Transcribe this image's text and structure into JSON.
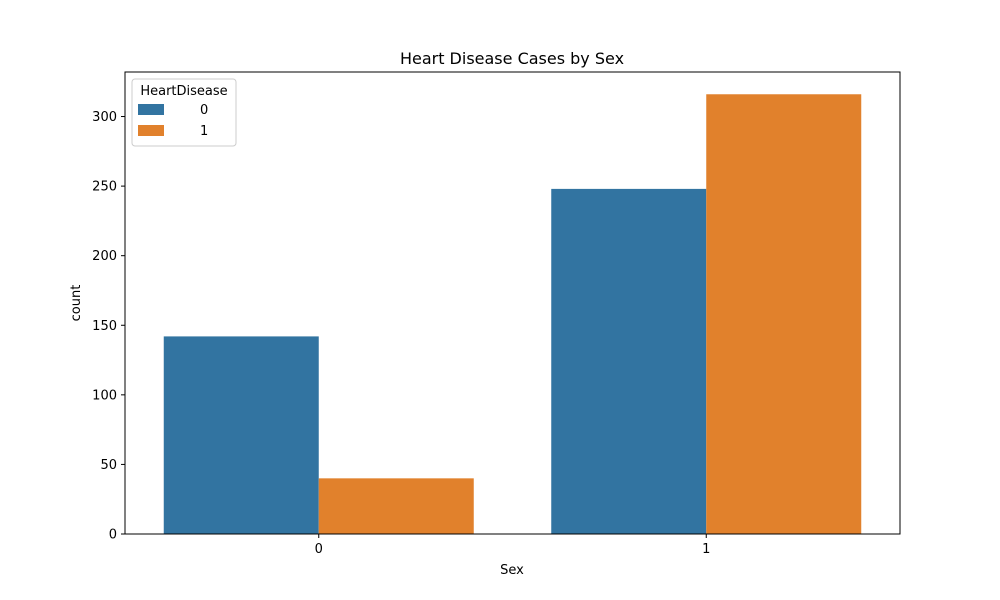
{
  "chart_data": {
    "type": "bar",
    "title": "Heart Disease Cases by Sex",
    "xlabel": "Sex",
    "ylabel": "count",
    "categories": [
      "0",
      "1"
    ],
    "series": [
      {
        "name": "0",
        "values": [
          142,
          248
        ],
        "color": "#3274a1"
      },
      {
        "name": "1",
        "values": [
          40,
          316
        ],
        "color": "#e1812c"
      }
    ],
    "yticks": [
      0,
      50,
      100,
      150,
      200,
      250,
      300
    ],
    "ylim": [
      0,
      332
    ],
    "legend": {
      "title": "HeartDisease",
      "placement": "top-left"
    },
    "grid": false
  }
}
